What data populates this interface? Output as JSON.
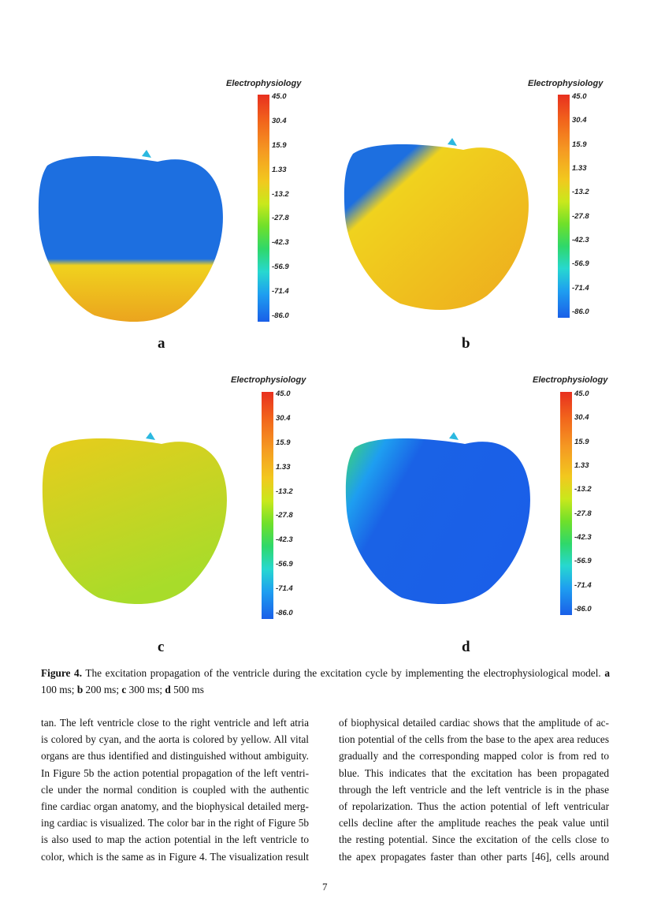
{
  "figure": {
    "colorbar_title": "Electrophysiology",
    "colorbar_ticks": [
      "45.0",
      "30.4",
      "15.9",
      "1.33",
      "-13.2",
      "-27.8",
      "-42.3",
      "-56.9",
      "-71.4",
      "-86.0"
    ],
    "colormap": [
      "#e8301f",
      "#f59a22",
      "#f2c81e",
      "#6fe02a",
      "#27d8d0",
      "#1a5fe8"
    ],
    "panels": [
      {
        "label": "a"
      },
      {
        "label": "b"
      },
      {
        "label": "c"
      },
      {
        "label": "d"
      }
    ]
  },
  "caption": {
    "prefix": "Figure 4.",
    "text": " The excitation propagation of the ventricle during the excitation cycle by implementing the electrophysiological model. ",
    "items": [
      {
        "label": "a",
        "text": " 100 ms; "
      },
      {
        "label": "b",
        "text": " 200 ms; "
      },
      {
        "label": "c",
        "text": " 300 ms; "
      },
      {
        "label": "d",
        "text": " 500 ms"
      }
    ]
  },
  "body": {
    "left_column": [
      "tan. The left ventricle close to the right ventricle and left atria",
      "is colored by cyan, and the aorta is colored by yellow. All vital",
      "organs are thus identified and distinguished without ambiguity.",
      "In Figure 5b the action potential propagation of the left ventri-",
      "cle under the normal condition is coupled with the authentic",
      "fine cardiac organ anatomy, and the biophysical detailed merg-",
      "ing cardiac is visualized. The color bar in the right of Figure 5b",
      "is also used to map the action potential in the left ventricle to",
      "color, which is the same as in Figure 4. The visualization result"
    ],
    "right_column": [
      "of biophysical detailed cardiac shows that the amplitude of ac-",
      "tion potential of the cells from the base to the apex area reduces",
      "gradually and the corresponding mapped color is from red to",
      "blue. This indicates that the excitation has been propagated",
      "through the left ventricle and the left ventricle is in the phase",
      "of repolarization. Thus the action potential of left ventricular",
      "cells decline after the amplitude reaches the peak value until",
      "the resting potential. Since the excitation of the cells close to",
      "the apex propagates faster than other parts [46], cells around"
    ]
  },
  "page_number": "7"
}
